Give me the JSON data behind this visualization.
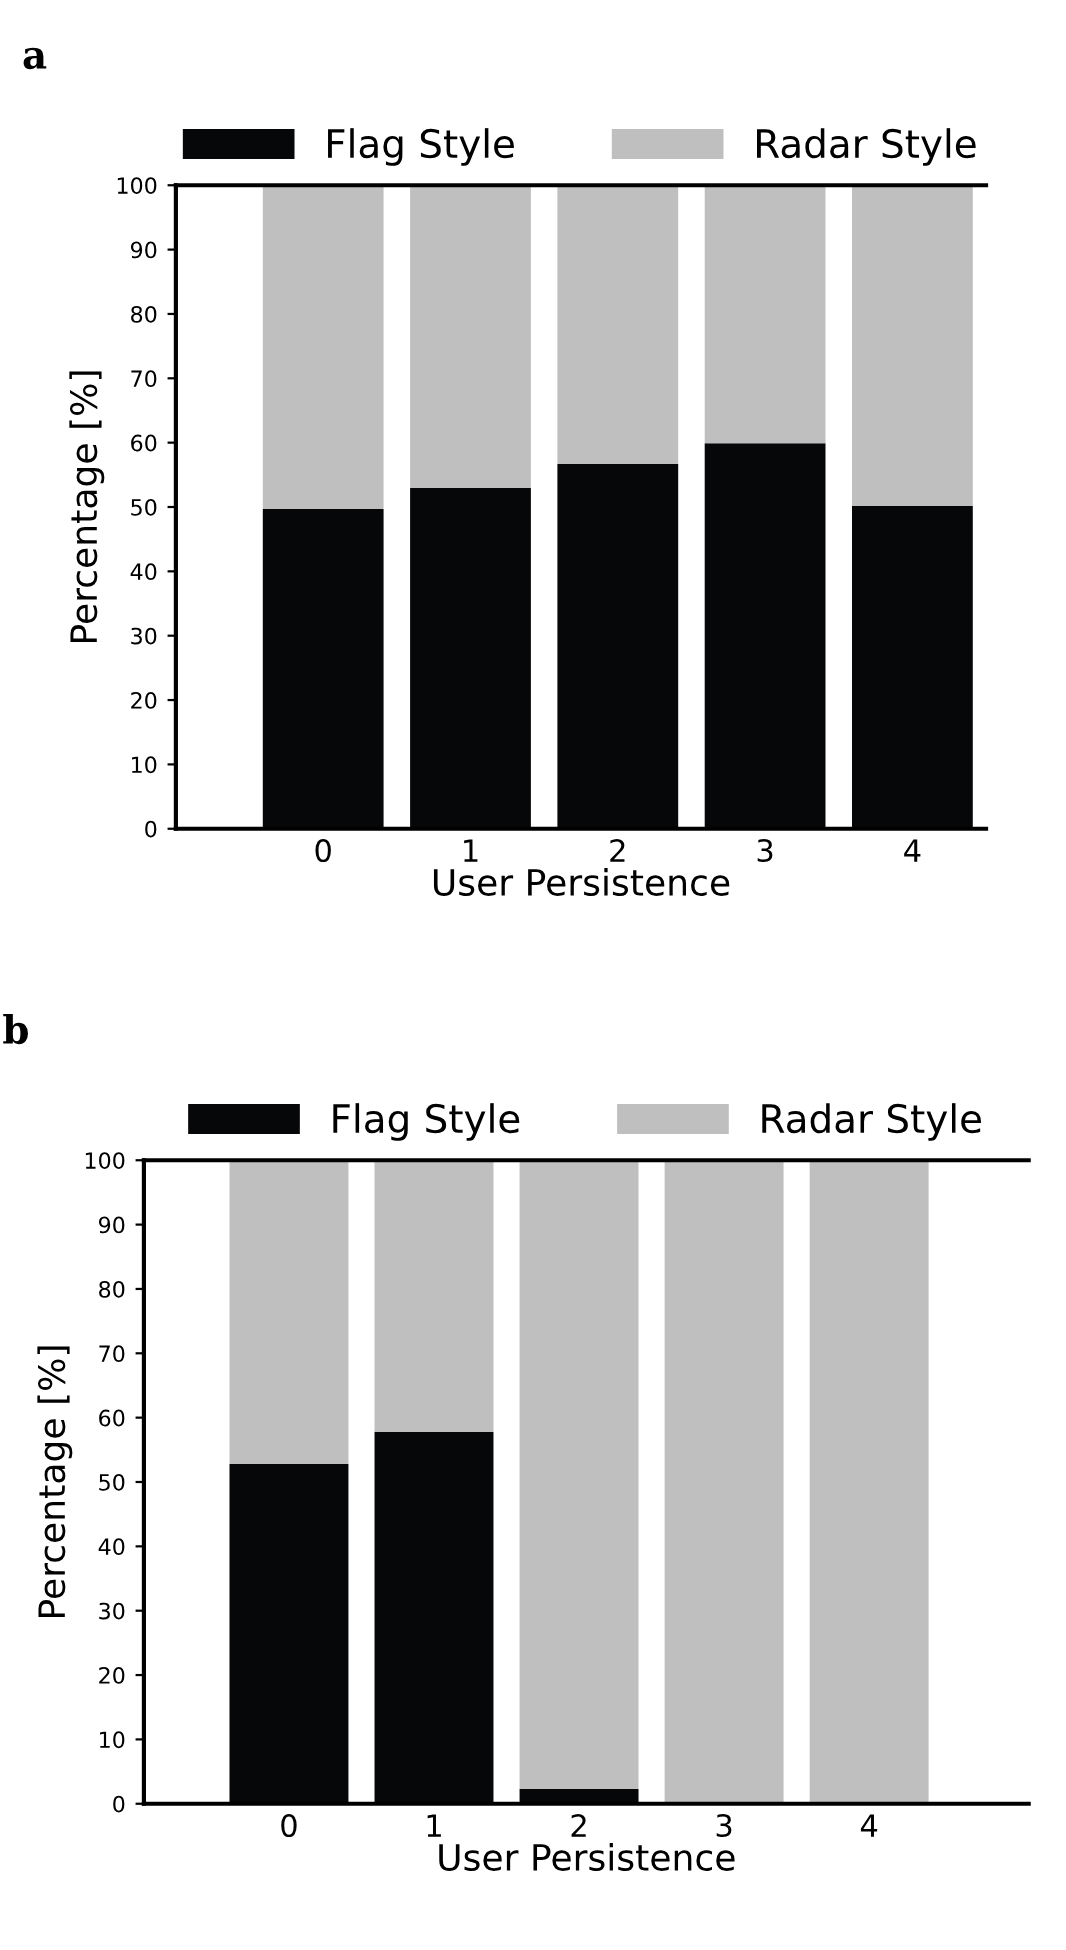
{
  "chart_data": [
    {
      "type": "bar",
      "title": "a",
      "stacked": true,
      "categories": [
        "0",
        "1",
        "2",
        "3",
        "4"
      ],
      "xlabel": "User Persistence",
      "ylabel": "Percentage [%]",
      "ylim": [
        0,
        100
      ],
      "yticks": [
        0,
        10,
        20,
        30,
        40,
        50,
        60,
        70,
        80,
        90,
        100
      ],
      "legend": "top",
      "series": [
        {
          "name": "Flag Style",
          "color": "#060709",
          "values": [
            49.7,
            53,
            56.7,
            59.9,
            50.2
          ]
        },
        {
          "name": "Radar Style",
          "color": "#bfbfbf",
          "values": [
            50.3,
            47,
            43.3,
            40.1,
            49.8
          ]
        }
      ]
    },
    {
      "type": "bar",
      "title": "b",
      "stacked": true,
      "categories": [
        "0",
        "1",
        "2",
        "3",
        "4"
      ],
      "xlabel": "User Persistence",
      "ylabel": "Percentage [%]",
      "ylim": [
        0,
        100
      ],
      "yticks": [
        0,
        10,
        20,
        30,
        40,
        50,
        60,
        70,
        80,
        90,
        100
      ],
      "legend": "top",
      "series": [
        {
          "name": "Flag Style",
          "color": "#060709",
          "values": [
            52.8,
            57.8,
            2.3,
            0,
            0
          ]
        },
        {
          "name": "Radar Style",
          "color": "#bfbfbf",
          "values": [
            47.2,
            42.2,
            97.7,
            100,
            100
          ]
        }
      ]
    }
  ]
}
